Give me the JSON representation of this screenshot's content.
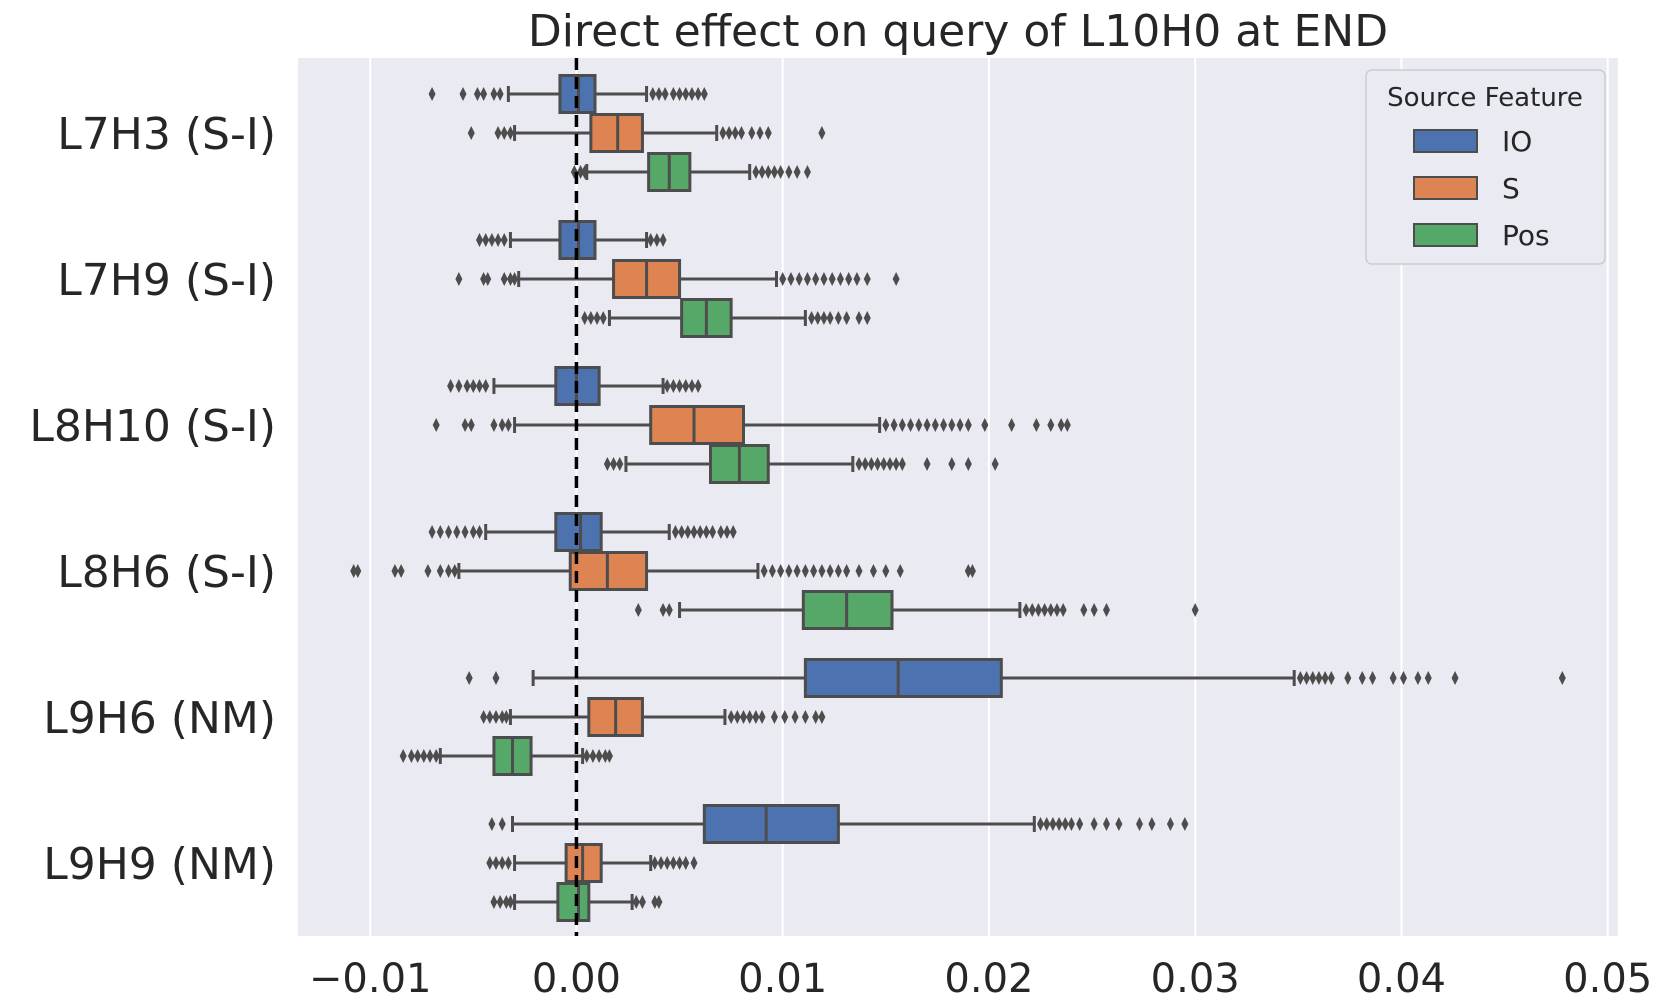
{
  "chart_data": {
    "type": "boxplot",
    "orientation": "horizontal",
    "title": "Direct effect on query of L10H0 at END",
    "xlabel": "",
    "ylabel": "",
    "xlim": [
      -0.0135,
      0.0505
    ],
    "xticks": [
      -0.01,
      0.0,
      0.01,
      0.02,
      0.03,
      0.04,
      0.05
    ],
    "xtick_labels": [
      "−0.01",
      "0.00",
      "0.01",
      "0.02",
      "0.03",
      "0.04",
      "0.05"
    ],
    "grid": true,
    "reference_line": {
      "x": 0.0,
      "style": "dashed",
      "color": "#000000"
    },
    "legend": {
      "title": "Source Feature",
      "position": "top-right"
    },
    "colors": {
      "IO": "#4c72b0",
      "S": "#dd8452",
      "Pos": "#55a868",
      "line": "#4d4d4d",
      "background": "#eaeaf2",
      "grid": "#ffffff"
    },
    "series": [
      "IO",
      "S",
      "Pos"
    ],
    "categories": [
      {
        "label": "L7H3 (S-I)",
        "boxes": [
          {
            "feature": "IO",
            "whisker_low": -0.0033,
            "q1": -0.0008,
            "median": 0.0001,
            "q3": 0.0009,
            "whisker_high": 0.0034,
            "outliers": [
              -0.007,
              -0.0055,
              -0.0048,
              -0.0045,
              -0.004,
              -0.0037,
              0.0037,
              0.004,
              0.0043,
              0.0047,
              0.005,
              0.0053,
              0.0056,
              0.0059,
              0.0062
            ]
          },
          {
            "feature": "S",
            "whisker_low": -0.003,
            "q1": 0.0007,
            "median": 0.002,
            "q3": 0.0032,
            "whisker_high": 0.0068,
            "outliers": [
              -0.0051,
              -0.0038,
              -0.0035,
              -0.0032,
              0.0071,
              0.0074,
              0.0077,
              0.008,
              0.0085,
              0.0089,
              0.0093,
              0.0119
            ]
          },
          {
            "feature": "Pos",
            "whisker_low": 0.0005,
            "q1": 0.0035,
            "median": 0.0045,
            "q3": 0.0055,
            "whisker_high": 0.0084,
            "outliers": [
              -0.0001,
              0.0002,
              0.0004,
              0.0087,
              0.009,
              0.0093,
              0.0096,
              0.0099,
              0.0103,
              0.0107,
              0.0112
            ]
          }
        ]
      },
      {
        "label": "L7H9 (S-I)",
        "boxes": [
          {
            "feature": "IO",
            "whisker_low": -0.0032,
            "q1": -0.0008,
            "median": 0.0001,
            "q3": 0.0009,
            "whisker_high": 0.0034,
            "outliers": [
              -0.0047,
              -0.0044,
              -0.0041,
              -0.0038,
              -0.0035,
              0.0036,
              0.0039,
              0.0042
            ]
          },
          {
            "feature": "S",
            "whisker_low": -0.0028,
            "q1": 0.0018,
            "median": 0.0034,
            "q3": 0.005,
            "whisker_high": 0.0097,
            "outliers": [
              -0.0057,
              -0.0045,
              -0.0043,
              -0.0035,
              -0.0032,
              -0.003,
              0.01,
              0.0104,
              0.0108,
              0.0112,
              0.0116,
              0.012,
              0.0124,
              0.0128,
              0.0132,
              0.0136,
              0.0141,
              0.0155
            ]
          },
          {
            "feature": "Pos",
            "whisker_low": 0.0016,
            "q1": 0.0051,
            "median": 0.0063,
            "q3": 0.0075,
            "whisker_high": 0.0111,
            "outliers": [
              0.0004,
              0.0007,
              0.001,
              0.0013,
              0.0114,
              0.0117,
              0.012,
              0.0123,
              0.0127,
              0.0131,
              0.0137,
              0.0141
            ]
          }
        ]
      },
      {
        "label": "L8H10 (S-I)",
        "boxes": [
          {
            "feature": "IO",
            "whisker_low": -0.004,
            "q1": -0.001,
            "median": 0.0,
            "q3": 0.0011,
            "whisker_high": 0.0042,
            "outliers": [
              -0.0061,
              -0.0057,
              -0.0053,
              -0.005,
              -0.0047,
              -0.0044,
              0.0044,
              0.0047,
              0.005,
              0.0053,
              0.0056,
              0.0059
            ]
          },
          {
            "feature": "S",
            "whisker_low": -0.003,
            "q1": 0.0036,
            "median": 0.0057,
            "q3": 0.0081,
            "whisker_high": 0.0147,
            "outliers": [
              -0.0068,
              -0.0054,
              -0.0051,
              -0.004,
              -0.0036,
              -0.0033,
              0.015,
              0.0154,
              0.0158,
              0.0162,
              0.0166,
              0.017,
              0.0174,
              0.0178,
              0.0182,
              0.0186,
              0.019,
              0.0198,
              0.0211,
              0.0223,
              0.023,
              0.0235,
              0.0238
            ]
          },
          {
            "feature": "Pos",
            "whisker_low": 0.0024,
            "q1": 0.0065,
            "median": 0.0079,
            "q3": 0.0093,
            "whisker_high": 0.0134,
            "outliers": [
              0.0015,
              0.0018,
              0.0021,
              0.0137,
              0.014,
              0.0143,
              0.0146,
              0.0149,
              0.0152,
              0.0155,
              0.0158,
              0.017,
              0.0182,
              0.019,
              0.0203
            ]
          }
        ]
      },
      {
        "label": "L8H6 (S-I)",
        "boxes": [
          {
            "feature": "IO",
            "whisker_low": -0.0044,
            "q1": -0.001,
            "median": 0.0002,
            "q3": 0.0012,
            "whisker_high": 0.0045,
            "outliers": [
              -0.007,
              -0.0066,
              -0.0062,
              -0.0058,
              -0.0054,
              -0.005,
              -0.0047,
              0.0048,
              0.0051,
              0.0054,
              0.0057,
              0.006,
              0.0063,
              0.0066,
              0.007,
              0.0073,
              0.0076
            ]
          },
          {
            "feature": "S",
            "whisker_low": -0.0057,
            "q1": -0.0003,
            "median": 0.0015,
            "q3": 0.0034,
            "whisker_high": 0.0088,
            "outliers": [
              -0.0108,
              -0.0106,
              -0.0088,
              -0.0085,
              -0.0072,
              -0.0066,
              -0.0062,
              -0.0059,
              0.0091,
              0.0095,
              0.0099,
              0.0103,
              0.0107,
              0.0111,
              0.0115,
              0.0119,
              0.0123,
              0.0127,
              0.0131,
              0.0137,
              0.0144,
              0.015,
              0.0157,
              0.019,
              0.0192
            ]
          },
          {
            "feature": "Pos",
            "whisker_low": 0.005,
            "q1": 0.011,
            "median": 0.0131,
            "q3": 0.0153,
            "whisker_high": 0.0215,
            "outliers": [
              0.003,
              0.0042,
              0.0045,
              0.0218,
              0.0221,
              0.0224,
              0.0227,
              0.023,
              0.0233,
              0.0236,
              0.0246,
              0.0251,
              0.0257,
              0.03
            ]
          }
        ]
      },
      {
        "label": "L9H6 (NM)",
        "boxes": [
          {
            "feature": "IO",
            "whisker_low": -0.0021,
            "q1": 0.0111,
            "median": 0.0156,
            "q3": 0.0206,
            "whisker_high": 0.0348,
            "outliers": [
              -0.0052,
              -0.0039,
              0.0351,
              0.0354,
              0.0357,
              0.036,
              0.0363,
              0.0366,
              0.0374,
              0.0381,
              0.0386,
              0.0396,
              0.0401,
              0.0408,
              0.0413,
              0.0426,
              0.0478
            ]
          },
          {
            "feature": "S",
            "whisker_low": -0.0032,
            "q1": 0.0006,
            "median": 0.0019,
            "q3": 0.0032,
            "whisker_high": 0.0072,
            "outliers": [
              -0.0045,
              -0.0042,
              -0.0039,
              -0.0036,
              -0.0034,
              0.0075,
              0.0078,
              0.0081,
              0.0084,
              0.0087,
              0.009,
              0.0096,
              0.0101,
              0.0106,
              0.0111,
              0.0116,
              0.0119
            ]
          },
          {
            "feature": "Pos",
            "whisker_low": -0.0066,
            "q1": -0.004,
            "median": -0.0031,
            "q3": -0.0022,
            "whisker_high": 0.0003,
            "outliers": [
              -0.0084,
              -0.008,
              -0.0077,
              -0.0074,
              -0.0071,
              -0.0068,
              0.0005,
              0.0008,
              0.0011,
              0.0014,
              0.0016
            ]
          }
        ]
      },
      {
        "label": "L9H9 (NM)",
        "boxes": [
          {
            "feature": "IO",
            "whisker_low": -0.0031,
            "q1": 0.0062,
            "median": 0.0092,
            "q3": 0.0127,
            "whisker_high": 0.0222,
            "outliers": [
              -0.0041,
              -0.0036,
              0.0225,
              0.0228,
              0.0231,
              0.0234,
              0.0237,
              0.024,
              0.0244,
              0.0251,
              0.0257,
              0.0263,
              0.0273,
              0.0279,
              0.0288,
              0.0295
            ]
          },
          {
            "feature": "S",
            "whisker_low": -0.003,
            "q1": -0.0005,
            "median": 0.0003,
            "q3": 0.0012,
            "whisker_high": 0.0036,
            "outliers": [
              -0.0042,
              -0.0039,
              -0.0036,
              -0.0033,
              0.0038,
              0.0041,
              0.0044,
              0.0047,
              0.005,
              0.0053,
              0.0057
            ]
          },
          {
            "feature": "Pos",
            "whisker_low": -0.003,
            "q1": -0.0009,
            "median": 0.0001,
            "q3": 0.0006,
            "whisker_high": 0.0027,
            "outliers": [
              -0.004,
              -0.0037,
              -0.0034,
              -0.0032,
              0.0029,
              0.0032,
              0.0038,
              0.004
            ]
          }
        ]
      }
    ]
  }
}
